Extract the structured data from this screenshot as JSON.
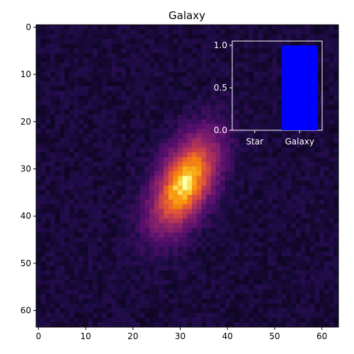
{
  "chart_data": [
    {
      "type": "heatmap",
      "title": "Galaxy",
      "xlabel": "",
      "ylabel": "",
      "xlim": [
        -0.5,
        63.5
      ],
      "ylim": [
        63.5,
        -0.5
      ],
      "x_ticks": [
        "0",
        "10",
        "20",
        "30",
        "40",
        "50",
        "60"
      ],
      "y_ticks": [
        "0",
        "10",
        "20",
        "30",
        "40",
        "50",
        "60"
      ],
      "colormap": "inferno-like",
      "image_size": [
        64,
        64
      ],
      "source": {
        "center": [
          31,
          33
        ],
        "sigma_major": 7.5,
        "sigma_minor": 3.8,
        "angle_deg": -63,
        "peak": 1.0,
        "background": 0.12,
        "noise": 0.05
      }
    },
    {
      "type": "bar",
      "categories": [
        "Star",
        "Galaxy"
      ],
      "values": [
        0.0,
        1.0
      ],
      "ylim": [
        0,
        1.05
      ],
      "y_ticks": [
        "0.0",
        "0.5",
        "1.0"
      ],
      "bar_color": "#0000ff",
      "text_color": "#ffffff",
      "frame_color": "#ffffff"
    }
  ]
}
